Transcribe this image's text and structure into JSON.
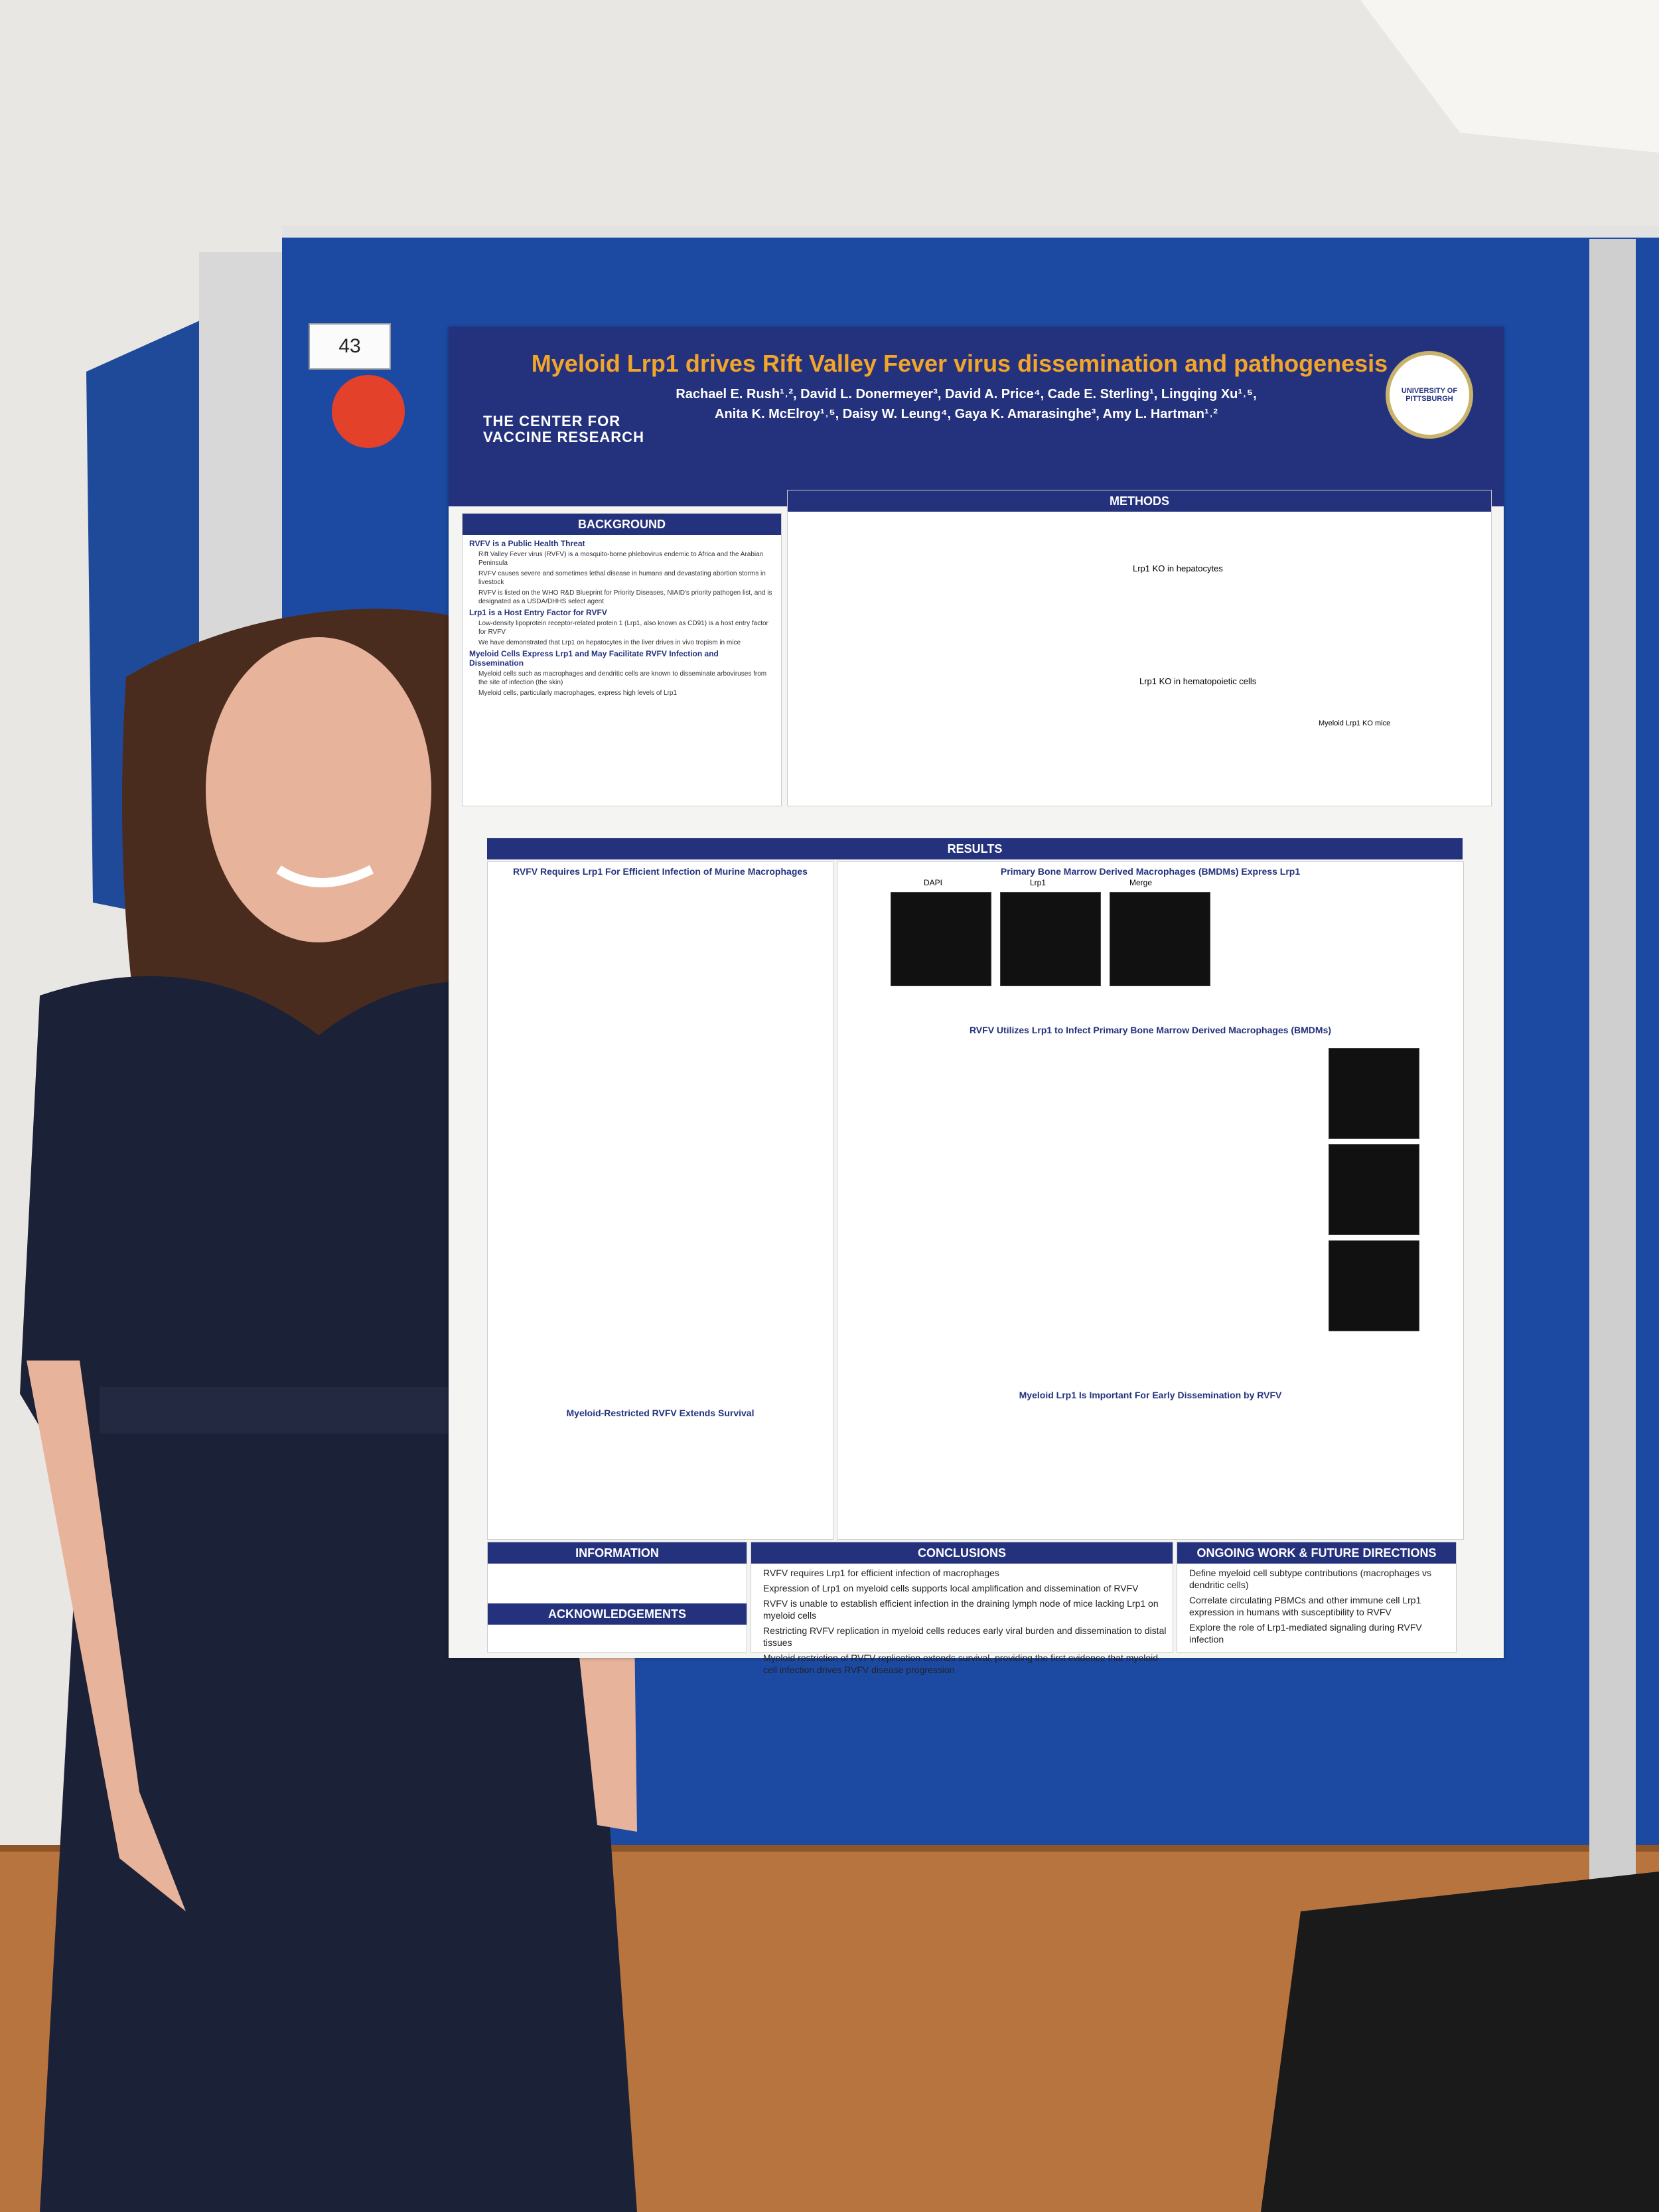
{
  "board_number": "43",
  "poster": {
    "title": "Myeloid Lrp1 drives Rift Valley Fever virus dissemination and pathogenesis",
    "authors": [
      "Rachael E. Rush¹˒², David L. Donermeyer³, David A. Price⁴, Cade E. Sterling¹, Lingqing Xu¹˒⁵,",
      "Anita K. McElroy¹˒⁵, Daisy W. Leung⁴, Gaya K. Amarasinghe³, Amy L. Hartman¹˒²"
    ],
    "logo": "THE CENTER FOR VACCINE RESEARCH",
    "seal": "UNIVERSITY OF PITTSBURGH",
    "background": {
      "heading": "BACKGROUND",
      "subsections": [
        {
          "title": "RVFV is a Public Health Threat",
          "bullets": [
            "Rift Valley Fever virus (RVFV) is a mosquito-borne phlebovirus endemic to Africa and the Arabian Peninsula",
            "RVFV causes severe and sometimes lethal disease in humans and devastating abortion storms in livestock",
            "RVFV is listed on the WHO R&D Blueprint for Priority Diseases, NIAID's priority pathogen list, and is designated as a USDA/DHHS select agent"
          ]
        },
        {
          "title": "Lrp1 is a Host Entry Factor for RVFV",
          "bullets": [
            "Low-density lipoprotein receptor-related protein 1 (Lrp1, also known as CD91) is a host entry factor for RVFV",
            "We have demonstrated that Lrp1 on hepatocytes in the liver drives in vivo tropism in mice"
          ]
        },
        {
          "title": "Myeloid Cells Express Lrp1 and May Facilitate RVFV Infection and Dissemination",
          "bullets": [
            "Myeloid cells such as macrophages and dendritic cells are known to disseminate arboviruses from the site of infection (the skin)",
            "Myeloid cells, particularly macrophages, express high levels of Lrp1"
          ]
        }
      ]
    },
    "methods": {
      "heading": "METHODS",
      "labels": [
        "Lrp1 KO in hepatocytes",
        "Lrp1 KO in hematopoietic cells",
        "Myeloid Lrp1 KO mice"
      ]
    },
    "results": {
      "heading": "RESULTS",
      "subheadings": [
        "RVFV Requires Lrp1 For Efficient Infection of Murine Macrophages",
        "Primary Bone Marrow Derived Macrophages (BMDMs) Express Lrp1",
        "RVFV Utilizes Lrp1 to Infect Primary Bone Marrow Derived Macrophages (BMDMs)",
        "Myeloid-Restricted RVFV Extends Survival",
        "Myeloid Lrp1 Is Important For Early Dissemination by RVFV"
      ],
      "image_labels": [
        "DAPI",
        "Lrp1",
        "Merge"
      ]
    },
    "conclusions": {
      "heading": "CONCLUSIONS",
      "bullets": [
        "RVFV requires Lrp1 for efficient infection of macrophages",
        "Expression of Lrp1 on myeloid cells supports local amplification and dissemination of RVFV",
        "RVFV is unable to establish efficient infection in the draining lymph node of mice lacking Lrp1 on myeloid cells",
        "Restricting RVFV replication in myeloid cells reduces early viral burden and dissemination to distal tissues",
        "Myeloid restriction of RVFV replication extends survival, providing the first evidence that myeloid cell infection drives RVFV disease progression"
      ]
    },
    "ongoing": {
      "heading": "ONGOING WORK & FUTURE DIRECTIONS",
      "bullets": [
        "Define myeloid cell subtype contributions (macrophages vs dendritic cells)",
        "Correlate circulating PBMCs and other immune cell Lrp1 expression in humans with susceptibility to RVFV",
        "Explore the role of Lrp1-mediated signaling during RVFV infection"
      ]
    },
    "information": {
      "heading": "INFORMATION"
    },
    "acknowledgements": {
      "heading": "ACKNOWLEDGEMENTS"
    }
  }
}
